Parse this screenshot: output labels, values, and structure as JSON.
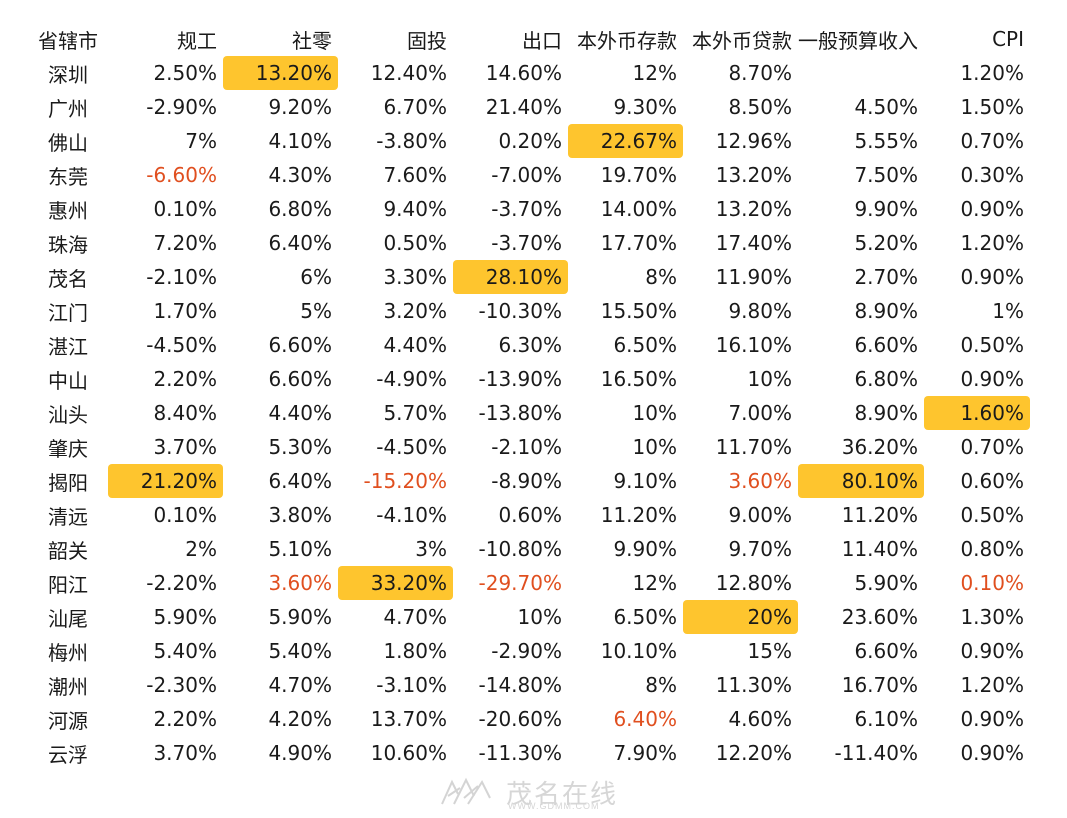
{
  "table": {
    "headers": [
      "省辖市",
      "规工",
      "社零",
      "固投",
      "出口",
      "本外币存款",
      "本外币贷款",
      "一般预算收入",
      "CPI"
    ],
    "rows": [
      {
        "city": "深圳",
        "values": [
          "2.50%",
          "13.20%",
          "12.40%",
          "14.60%",
          "12%",
          "8.70%",
          "",
          "1.20%"
        ]
      },
      {
        "city": "广州",
        "values": [
          "-2.90%",
          "9.20%",
          "6.70%",
          "21.40%",
          "9.30%",
          "8.50%",
          "4.50%",
          "1.50%"
        ]
      },
      {
        "city": "佛山",
        "values": [
          "7%",
          "4.10%",
          "-3.80%",
          "0.20%",
          "22.67%",
          "12.96%",
          "5.55%",
          "0.70%"
        ]
      },
      {
        "city": "东莞",
        "values": [
          "-6.60%",
          "4.30%",
          "7.60%",
          "-7.00%",
          "19.70%",
          "13.20%",
          "7.50%",
          "0.30%"
        ]
      },
      {
        "city": "惠州",
        "values": [
          "0.10%",
          "6.80%",
          "9.40%",
          "-3.70%",
          "14.00%",
          "13.20%",
          "9.90%",
          "0.90%"
        ]
      },
      {
        "city": "珠海",
        "values": [
          "7.20%",
          "6.40%",
          "0.50%",
          "-3.70%",
          "17.70%",
          "17.40%",
          "5.20%",
          "1.20%"
        ]
      },
      {
        "city": "茂名",
        "values": [
          "-2.10%",
          "6%",
          "3.30%",
          "28.10%",
          "8%",
          "11.90%",
          "2.70%",
          "0.90%"
        ]
      },
      {
        "city": "江门",
        "values": [
          "1.70%",
          "5%",
          "3.20%",
          "-10.30%",
          "15.50%",
          "9.80%",
          "8.90%",
          "1%"
        ]
      },
      {
        "city": "湛江",
        "values": [
          "-4.50%",
          "6.60%",
          "4.40%",
          "6.30%",
          "6.50%",
          "16.10%",
          "6.60%",
          "0.50%"
        ]
      },
      {
        "city": "中山",
        "values": [
          "2.20%",
          "6.60%",
          "-4.90%",
          "-13.90%",
          "16.50%",
          "10%",
          "6.80%",
          "0.90%"
        ]
      },
      {
        "city": "汕头",
        "values": [
          "8.40%",
          "4.40%",
          "5.70%",
          "-13.80%",
          "10%",
          "7.00%",
          "8.90%",
          "1.60%"
        ]
      },
      {
        "city": "肇庆",
        "values": [
          "3.70%",
          "5.30%",
          "-4.50%",
          "-2.10%",
          "10%",
          "11.70%",
          "36.20%",
          "0.70%"
        ]
      },
      {
        "city": "揭阳",
        "values": [
          "21.20%",
          "6.40%",
          "-15.20%",
          "-8.90%",
          "9.10%",
          "3.60%",
          "80.10%",
          "0.60%"
        ]
      },
      {
        "city": "清远",
        "values": [
          "0.10%",
          "3.80%",
          "-4.10%",
          "0.60%",
          "11.20%",
          "9.00%",
          "11.20%",
          "0.50%"
        ]
      },
      {
        "city": "韶关",
        "values": [
          "2%",
          "5.10%",
          "3%",
          "-10.80%",
          "9.90%",
          "9.70%",
          "11.40%",
          "0.80%"
        ]
      },
      {
        "city": "阳江",
        "values": [
          "-2.20%",
          "3.60%",
          "33.20%",
          "-29.70%",
          "12%",
          "12.80%",
          "5.90%",
          "0.10%"
        ]
      },
      {
        "city": "汕尾",
        "values": [
          "5.90%",
          "5.90%",
          "4.70%",
          "10%",
          "6.50%",
          "20%",
          "23.60%",
          "1.30%"
        ]
      },
      {
        "city": "梅州",
        "values": [
          "5.40%",
          "5.40%",
          "1.80%",
          "-2.90%",
          "10.10%",
          "15%",
          "6.60%",
          "0.90%"
        ]
      },
      {
        "city": "潮州",
        "values": [
          "-2.30%",
          "4.70%",
          "-3.10%",
          "-14.80%",
          "8%",
          "11.30%",
          "16.70%",
          "1.20%"
        ]
      },
      {
        "city": "河源",
        "values": [
          "2.20%",
          "4.20%",
          "13.70%",
          "-20.60%",
          "6.40%",
          "4.60%",
          "6.10%",
          "0.90%"
        ]
      },
      {
        "city": "云浮",
        "values": [
          "3.70%",
          "4.90%",
          "10.60%",
          "-11.30%",
          "7.90%",
          "12.20%",
          "-11.40%",
          "0.90%"
        ]
      }
    ],
    "highlight_max": [
      [
        0,
        1
      ],
      [
        2,
        4
      ],
      [
        6,
        3
      ],
      [
        10,
        7
      ],
      [
        12,
        0
      ],
      [
        12,
        6
      ],
      [
        15,
        2
      ],
      [
        16,
        5
      ]
    ],
    "highlight_min": [
      [
        3,
        0
      ],
      [
        12,
        2
      ],
      [
        12,
        5
      ],
      [
        15,
        1
      ],
      [
        15,
        3
      ],
      [
        15,
        7
      ],
      [
        19,
        4
      ]
    ],
    "colors": {
      "highlight_bg": "#fec52e",
      "min_text": "#e04f1f"
    }
  },
  "watermark": {
    "name": "茂名在线",
    "url": "WWW.GDMM.COM"
  }
}
